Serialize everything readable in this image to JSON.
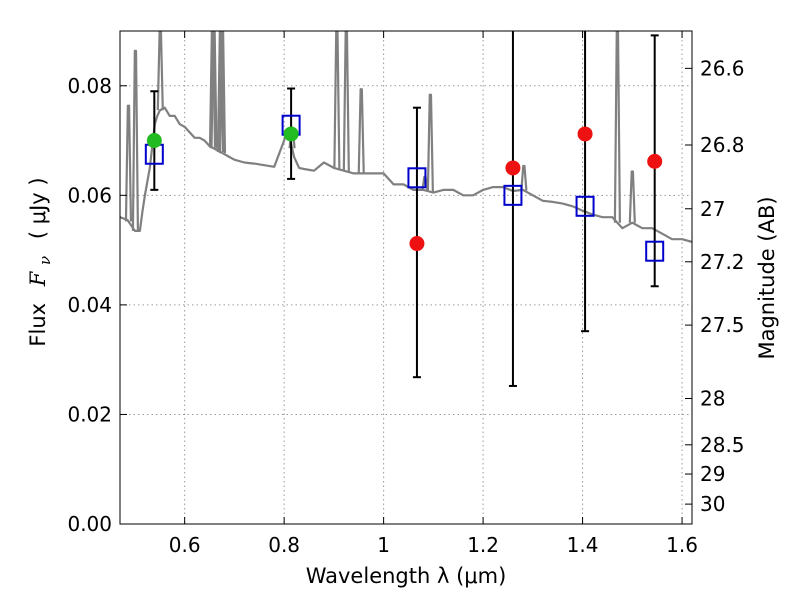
{
  "chart_data": {
    "type": "scatter",
    "xlabel": "Wavelength  λ (μm)",
    "ylabel_main": "Flux",
    "ylabel_symbol": "F",
    "ylabel_sub": "ν",
    "ylabel_unit": "( μJy )",
    "y2label": "Magnitude (AB)",
    "xlim": [
      0.47,
      1.62
    ],
    "ylim": [
      0.0,
      0.09
    ],
    "grid": true,
    "x_ticks": [
      {
        "v": 0.6,
        "label": "0.6"
      },
      {
        "v": 0.8,
        "label": "0.8"
      },
      {
        "v": 1.0,
        "label": "1"
      },
      {
        "v": 1.2,
        "label": "1.2"
      },
      {
        "v": 1.4,
        "label": "1.4"
      },
      {
        "v": 1.6,
        "label": "1.6"
      }
    ],
    "y_ticks": [
      {
        "v": 0.0,
        "label": "0.00"
      },
      {
        "v": 0.02,
        "label": "0.02"
      },
      {
        "v": 0.04,
        "label": "0.04"
      },
      {
        "v": 0.06,
        "label": "0.06"
      },
      {
        "v": 0.08,
        "label": "0.08"
      }
    ],
    "mag_ticks": [
      {
        "label": "26.6"
      },
      {
        "label": "26.8"
      },
      {
        "label": "27"
      },
      {
        "label": "27.2"
      },
      {
        "label": "27.5"
      },
      {
        "label": "28"
      },
      {
        "label": "28.5"
      },
      {
        "label": "29"
      },
      {
        "label": "30"
      }
    ],
    "colors": {
      "model": "#808080",
      "observed_detected": "#22bb22",
      "observed_upper": "#ee1111",
      "model_photometry": "#0000cc",
      "errorbar": "#000000",
      "grid": "#9a9a9a"
    },
    "model_spectrum": {
      "x": [
        0.47,
        0.485,
        0.5,
        0.51,
        0.515,
        0.52,
        0.53,
        0.535,
        0.54,
        0.545,
        0.55,
        0.56,
        0.57,
        0.58,
        0.59,
        0.6,
        0.61,
        0.62,
        0.63,
        0.64,
        0.65,
        0.66,
        0.67,
        0.68,
        0.69,
        0.7,
        0.72,
        0.74,
        0.76,
        0.78,
        0.8,
        0.805,
        0.81,
        0.82,
        0.83,
        0.84,
        0.86,
        0.88,
        0.9,
        0.92,
        0.94,
        0.96,
        0.97,
        0.98,
        1.0,
        1.02,
        1.04,
        1.06,
        1.08,
        1.1,
        1.12,
        1.14,
        1.16,
        1.18,
        1.2,
        1.22,
        1.24,
        1.26,
        1.28,
        1.3,
        1.32,
        1.34,
        1.36,
        1.38,
        1.4,
        1.42,
        1.44,
        1.46,
        1.48,
        1.5,
        1.52,
        1.54,
        1.56,
        1.58,
        1.6,
        1.62
      ],
      "y": [
        0.056,
        0.0555,
        0.0535,
        0.0535,
        0.057,
        0.06,
        0.065,
        0.069,
        0.073,
        0.0745,
        0.0755,
        0.076,
        0.0745,
        0.0745,
        0.073,
        0.0725,
        0.0715,
        0.0705,
        0.0705,
        0.07,
        0.069,
        0.0685,
        0.068,
        0.0675,
        0.067,
        0.0665,
        0.066,
        0.0658,
        0.0655,
        0.0652,
        0.07,
        0.072,
        0.071,
        0.067,
        0.065,
        0.0648,
        0.0645,
        0.066,
        0.065,
        0.0645,
        0.064,
        0.064,
        0.064,
        0.064,
        0.064,
        0.062,
        0.062,
        0.061,
        0.061,
        0.0605,
        0.061,
        0.061,
        0.06,
        0.06,
        0.061,
        0.0615,
        0.0615,
        0.0608,
        0.061,
        0.06,
        0.059,
        0.0588,
        0.0585,
        0.058,
        0.0572,
        0.0565,
        0.056,
        0.056,
        0.054,
        0.055,
        0.054,
        0.054,
        0.053,
        0.052,
        0.052,
        0.0515
      ]
    },
    "emission_lines": [
      {
        "x": 0.487,
        "peak": 0.076
      },
      {
        "x": 0.501,
        "peak": 0.086
      },
      {
        "x": 0.551,
        "peak": 0.09
      },
      {
        "x": 0.656,
        "peak": 0.09
      },
      {
        "x": 0.659,
        "peak": 0.09
      },
      {
        "x": 0.672,
        "peak": 0.09
      },
      {
        "x": 0.676,
        "peak": 0.09
      },
      {
        "x": 0.816,
        "peak": 0.072
      },
      {
        "x": 0.906,
        "peak": 0.09
      },
      {
        "x": 0.925,
        "peak": 0.09
      },
      {
        "x": 0.955,
        "peak": 0.079
      },
      {
        "x": 1.083,
        "peak": 0.063
      },
      {
        "x": 1.094,
        "peak": 0.078
      },
      {
        "x": 1.282,
        "peak": 0.065
      },
      {
        "x": 1.47,
        "peak": 0.09
      },
      {
        "x": 1.5,
        "peak": 0.064
      }
    ],
    "observed": [
      {
        "x": 0.539,
        "y": 0.07,
        "err_low": 0.061,
        "err_high": 0.079,
        "kind": "detected"
      },
      {
        "x": 0.814,
        "y": 0.0712,
        "err_low": 0.063,
        "err_high": 0.0795,
        "kind": "detected"
      },
      {
        "x": 1.067,
        "y": 0.0512,
        "err_low": 0.0268,
        "err_high": 0.076,
        "kind": "upper"
      },
      {
        "x": 1.26,
        "y": 0.065,
        "err_low": 0.0252,
        "err_high": 0.09,
        "kind": "upper"
      },
      {
        "x": 1.405,
        "y": 0.0712,
        "err_low": 0.0352,
        "err_high": 0.09,
        "kind": "upper"
      },
      {
        "x": 1.545,
        "y": 0.0662,
        "err_low": 0.0434,
        "err_high": 0.0892,
        "kind": "upper"
      }
    ],
    "model_photometry": [
      {
        "x": 0.539,
        "y": 0.0675
      },
      {
        "x": 0.814,
        "y": 0.0728
      },
      {
        "x": 1.067,
        "y": 0.0632
      },
      {
        "x": 1.26,
        "y": 0.06
      },
      {
        "x": 1.405,
        "y": 0.058
      },
      {
        "x": 1.545,
        "y": 0.0498
      }
    ]
  }
}
